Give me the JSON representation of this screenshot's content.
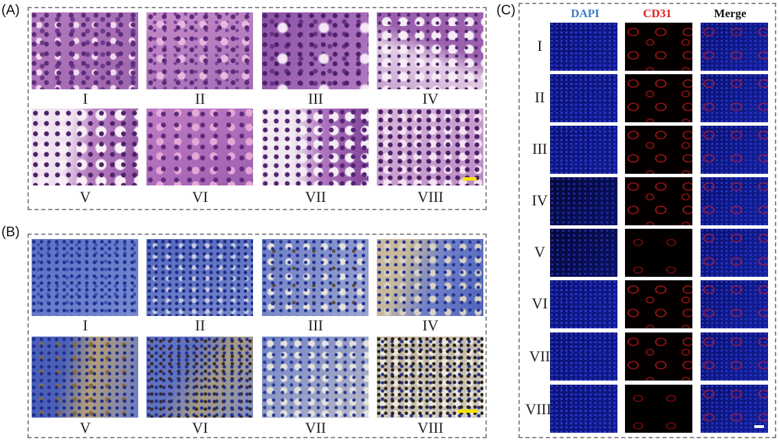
{
  "panels": {
    "a": {
      "label": "(A)",
      "captions": [
        "I",
        "II",
        "III",
        "IV",
        "V",
        "VI",
        "VII",
        "VIII"
      ]
    },
    "b": {
      "label": "(B)",
      "captions": [
        "I",
        "II",
        "III",
        "IV",
        "V",
        "VI",
        "VII",
        "VIII"
      ]
    },
    "c": {
      "label": "(C)",
      "columns": [
        "DAPI",
        "CD31",
        "Merge"
      ],
      "rows": [
        "I",
        "II",
        "III",
        "IV",
        "V",
        "VI",
        "VII",
        "VIII"
      ]
    }
  },
  "colors": {
    "dapi_header": "#3a7ec8",
    "cd31_header": "#e02020",
    "merge_header": "#111111",
    "scalebar_yellow": "#f5e300",
    "scalebar_white": "#ffffff",
    "dashed_border": "#8a8a8a"
  }
}
